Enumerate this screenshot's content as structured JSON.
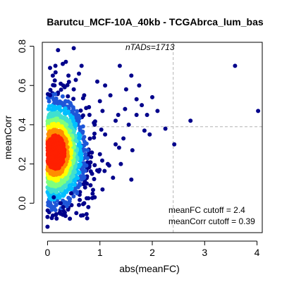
{
  "chart_data": {
    "type": "scatter",
    "title": "Barutcu_MCF-10A_40kb - TCGAbrca_lum_bas",
    "xlabel": "abs(meanFC)",
    "ylabel": "meanCorr",
    "xlim": [
      -0.1,
      4.1
    ],
    "ylim": [
      -0.15,
      0.82
    ],
    "x_ticks": [
      0,
      1,
      2,
      3,
      4
    ],
    "y_ticks": [
      0.0,
      0.2,
      0.4,
      0.6,
      0.8
    ],
    "y_tick_labels": [
      "0.0",
      "0.2",
      "0.4",
      "0.6",
      "0.8"
    ],
    "annotation_top": "nTADs=1713",
    "annotation_fc_cutoff": "meanFC cutoff = 2.4",
    "annotation_corr_cutoff": "meanCorr cutoff = 0.39",
    "fc_cutoff": 2.4,
    "corr_cutoff": 0.39,
    "density_colors": [
      "#00008B",
      "#1E56D8",
      "#00BFFF",
      "#40E0D0",
      "#7FFF7F",
      "#FFFF00",
      "#FF8C00",
      "#FF2000"
    ],
    "points": [
      [
        0.2,
        0.78
      ],
      [
        0.5,
        0.79
      ],
      [
        1.38,
        0.7
      ],
      [
        1.6,
        0.65
      ],
      [
        3.58,
        0.7
      ],
      [
        4.02,
        0.47
      ],
      [
        2.73,
        0.42
      ],
      [
        2.42,
        0.3
      ],
      [
        1.85,
        0.37
      ],
      [
        2.1,
        0.47
      ],
      [
        2.0,
        0.54
      ],
      [
        1.9,
        0.45
      ],
      [
        1.7,
        0.45
      ],
      [
        1.55,
        0.4
      ],
      [
        1.95,
        0.35
      ],
      [
        1.8,
        0.5
      ],
      [
        1.25,
        0.13
      ],
      [
        1.05,
        0.07
      ],
      [
        0.9,
        0.03
      ],
      [
        0.7,
        0.0
      ],
      [
        0.55,
        -0.05
      ],
      [
        0.0,
        -0.12
      ],
      [
        0.0,
        -0.07
      ],
      [
        0.3,
        -0.02
      ],
      [
        0.45,
        0.05
      ],
      [
        1.15,
        0.2
      ],
      [
        1.3,
        0.3
      ],
      [
        1.35,
        0.45
      ],
      [
        1.48,
        0.48
      ],
      [
        1.6,
        0.12
      ],
      [
        1.5,
        0.58
      ],
      [
        1.75,
        0.6
      ],
      [
        1.1,
        0.6
      ],
      [
        1.0,
        0.52
      ],
      [
        1.2,
        0.55
      ],
      [
        0.95,
        0.62
      ],
      [
        0.6,
        0.66
      ],
      [
        0.35,
        0.72
      ],
      [
        0.1,
        0.65
      ],
      [
        1.1,
        0.35
      ],
      [
        1.0,
        0.25
      ],
      [
        0.85,
        0.15
      ],
      [
        1.3,
        0.42
      ],
      [
        1.45,
        0.33
      ],
      [
        1.62,
        0.27
      ],
      [
        1.4,
        0.2
      ],
      [
        0.75,
        0.1
      ],
      [
        0.65,
        0.7
      ],
      [
        0.05,
        0.55
      ],
      [
        2.25,
        0.38
      ],
      [
        1.7,
        0.53
      ],
      [
        0.8,
        0.45
      ],
      [
        0.9,
        0.4
      ],
      [
        1.05,
        0.47
      ],
      [
        0.3,
        0.6
      ],
      [
        0.5,
        0.58
      ],
      [
        0.7,
        0.55
      ],
      [
        0.15,
        0.7
      ],
      [
        0.4,
        0.65
      ],
      [
        0.25,
        0.0
      ],
      [
        0.12,
        0.03
      ]
    ]
  }
}
